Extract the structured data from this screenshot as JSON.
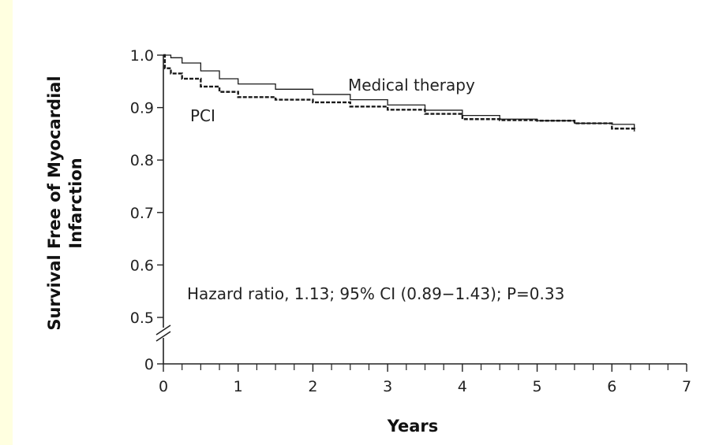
{
  "chart_data": {
    "type": "line",
    "title": "",
    "xlabel": "Years",
    "ylabel_line1": "Survival Free of Myocardial",
    "ylabel_line2": "Infarction",
    "xlim": [
      0,
      7
    ],
    "ylim": [
      0.5,
      1.0
    ],
    "y_axis_break": true,
    "y_ticks": [
      "0",
      "0.5",
      "0.6",
      "0.7",
      "0.8",
      "0.9",
      "1.0"
    ],
    "x_ticks": [
      "0",
      "1",
      "2",
      "3",
      "4",
      "5",
      "6",
      "7"
    ],
    "annotation": "Hazard ratio, 1.13; 95% CI (0.89−1.43); P=0.33",
    "series": [
      {
        "name": "Medical therapy",
        "style": "solid",
        "x": [
          0,
          0.1,
          0.25,
          0.5,
          0.75,
          1.0,
          1.5,
          2.0,
          2.5,
          3.0,
          3.5,
          4.0,
          4.5,
          5.0,
          5.5,
          6.0,
          6.3
        ],
        "y": [
          1.0,
          0.995,
          0.985,
          0.97,
          0.955,
          0.945,
          0.935,
          0.925,
          0.915,
          0.905,
          0.895,
          0.885,
          0.878,
          0.875,
          0.87,
          0.868,
          0.855
        ]
      },
      {
        "name": "PCI",
        "style": "dashed",
        "x": [
          0,
          0.02,
          0.1,
          0.25,
          0.5,
          0.75,
          1.0,
          1.5,
          2.0,
          2.5,
          3.0,
          3.5,
          4.0,
          4.5,
          5.0,
          5.5,
          6.0,
          6.3
        ],
        "y": [
          1.0,
          0.975,
          0.965,
          0.955,
          0.94,
          0.93,
          0.92,
          0.915,
          0.91,
          0.902,
          0.896,
          0.888,
          0.878,
          0.876,
          0.875,
          0.87,
          0.86,
          0.855
        ]
      }
    ]
  }
}
